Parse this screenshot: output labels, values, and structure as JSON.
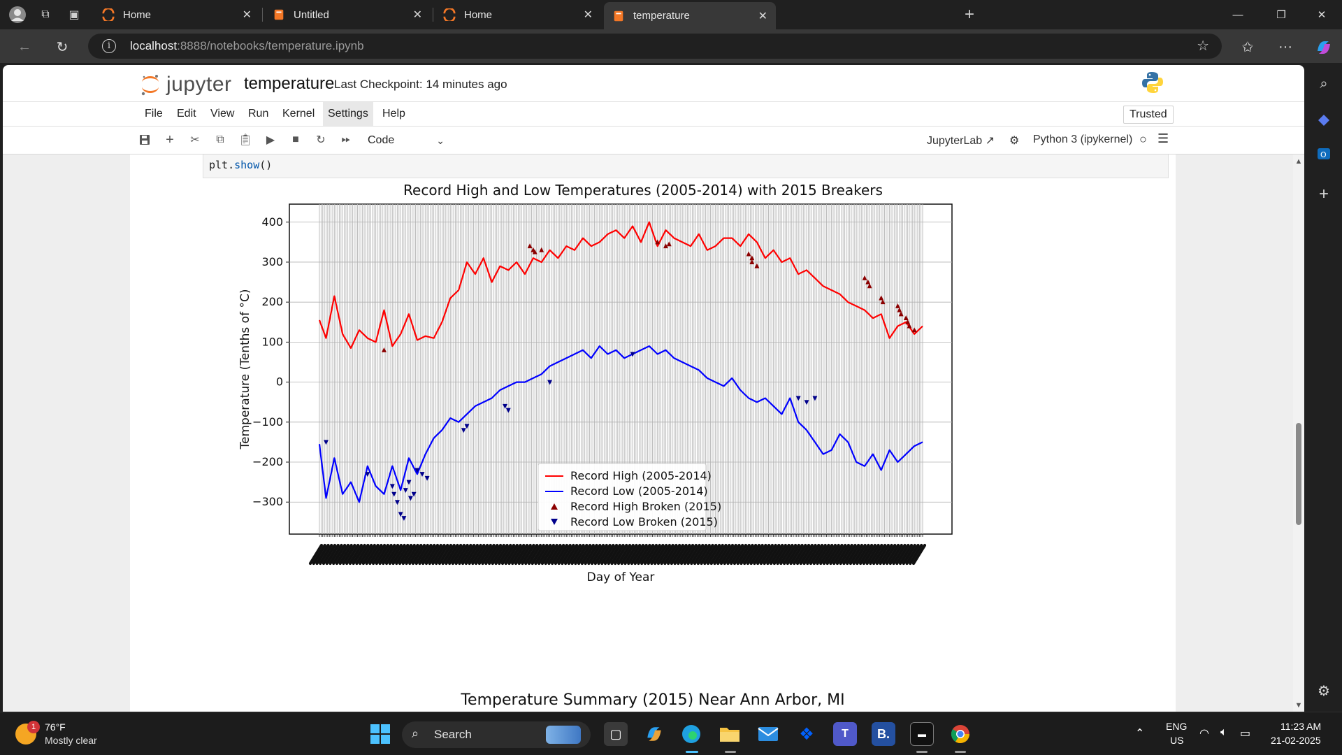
{
  "browser": {
    "tabs": [
      {
        "title": "Home",
        "active": false
      },
      {
        "title": "Untitled",
        "active": false
      },
      {
        "title": "Home",
        "active": false
      },
      {
        "title": "temperature",
        "active": true
      }
    ],
    "url_host": "localhost",
    "url_rest": ":8888/notebooks/temperature.ipynb"
  },
  "jupyter": {
    "logo_text": "jupyter",
    "notebook_name": "temperature",
    "checkpoint": "Last Checkpoint: 14 minutes ago",
    "menu": [
      "File",
      "Edit",
      "View",
      "Run",
      "Kernel",
      "Settings",
      "Help"
    ],
    "trusted": "Trusted",
    "cell_type": "Code",
    "jupyterlab_link": "JupyterLab",
    "kernel": "Python 3 (ipykernel)"
  },
  "cell": {
    "code_obj": "plt.",
    "code_fn": "show",
    "code_tail": "()"
  },
  "chart_data": {
    "type": "line",
    "title": "Record High and Low Temperatures (2005-2014) with 2015 Breakers",
    "xlabel": "Day of Year",
    "ylabel": "Temperature (Tenths of °C)",
    "ylim": [
      -380,
      445
    ],
    "yticks": [
      -300,
      -200,
      -100,
      0,
      100,
      200,
      300,
      400
    ],
    "ytick_labels": [
      "−300",
      "−200",
      "−100",
      "0",
      "100",
      "200",
      "300",
      "400"
    ],
    "grid": true,
    "legend_position": "lower center",
    "x_domain": [
      1,
      365
    ],
    "x_tick_labels_note": "365 date tick labels, overlapping and illegible",
    "high_color": "#ff0000",
    "low_color": "#0000ff",
    "high_marker_color": "#8b0000",
    "low_marker_color": "#00008b",
    "series": [
      {
        "name": "Record High (2005-2014)",
        "x": [
          1,
          5,
          10,
          15,
          20,
          25,
          30,
          35,
          40,
          45,
          50,
          55,
          60,
          65,
          70,
          75,
          80,
          85,
          90,
          95,
          100,
          105,
          110,
          115,
          120,
          125,
          130,
          135,
          140,
          145,
          150,
          155,
          160,
          165,
          170,
          175,
          180,
          185,
          190,
          195,
          200,
          205,
          210,
          215,
          220,
          225,
          230,
          235,
          240,
          245,
          250,
          255,
          260,
          265,
          270,
          275,
          280,
          285,
          290,
          295,
          300,
          305,
          310,
          315,
          320,
          325,
          330,
          335,
          340,
          345,
          350,
          355,
          360,
          365
        ],
        "values": [
          155,
          110,
          215,
          120,
          85,
          130,
          110,
          100,
          180,
          90,
          120,
          170,
          105,
          115,
          110,
          150,
          210,
          230,
          300,
          270,
          310,
          250,
          290,
          280,
          300,
          270,
          310,
          300,
          330,
          310,
          340,
          330,
          360,
          340,
          350,
          370,
          380,
          360,
          390,
          350,
          400,
          340,
          380,
          360,
          350,
          340,
          370,
          330,
          340,
          360,
          360,
          340,
          370,
          350,
          310,
          330,
          300,
          310,
          270,
          280,
          260,
          240,
          230,
          220,
          200,
          190,
          180,
          160,
          170,
          110,
          140,
          150,
          120,
          140
        ]
      },
      {
        "name": "Record Low (2005-2014)",
        "x": [
          1,
          5,
          10,
          15,
          20,
          25,
          30,
          35,
          40,
          45,
          50,
          55,
          60,
          65,
          70,
          75,
          80,
          85,
          90,
          95,
          100,
          105,
          110,
          115,
          120,
          125,
          130,
          135,
          140,
          145,
          150,
          155,
          160,
          165,
          170,
          175,
          180,
          185,
          190,
          195,
          200,
          205,
          210,
          215,
          220,
          225,
          230,
          235,
          240,
          245,
          250,
          255,
          260,
          265,
          270,
          275,
          280,
          285,
          290,
          295,
          300,
          305,
          310,
          315,
          320,
          325,
          330,
          335,
          340,
          345,
          350,
          355,
          360,
          365
        ],
        "values": [
          -155,
          -290,
          -190,
          -280,
          -250,
          -300,
          -210,
          -260,
          -280,
          -210,
          -270,
          -190,
          -230,
          -180,
          -140,
          -120,
          -90,
          -100,
          -80,
          -60,
          -50,
          -40,
          -20,
          -10,
          0,
          0,
          10,
          20,
          40,
          50,
          60,
          70,
          80,
          60,
          90,
          70,
          80,
          60,
          70,
          80,
          90,
          70,
          80,
          60,
          50,
          40,
          30,
          10,
          0,
          -10,
          10,
          -20,
          -40,
          -50,
          -40,
          -60,
          -80,
          -40,
          -100,
          -120,
          -150,
          -180,
          -170,
          -130,
          -150,
          -200,
          -210,
          -180,
          -220,
          -170,
          -200,
          -180,
          -160,
          -150
        ]
      },
      {
        "name": "Record High Broken (2015)",
        "marker": "triangle-up",
        "x": [
          40,
          128,
          130,
          131,
          135,
          205,
          210,
          212,
          260,
          262,
          262,
          265,
          330,
          332,
          333,
          340,
          341,
          350,
          351,
          352,
          355,
          356,
          357,
          360
        ],
        "values": [
          80,
          340,
          330,
          325,
          330,
          350,
          340,
          345,
          320,
          310,
          300,
          290,
          260,
          250,
          240,
          210,
          200,
          190,
          180,
          170,
          160,
          150,
          140,
          130
        ]
      },
      {
        "name": "Record Low Broken (2015)",
        "marker": "triangle-down",
        "x": [
          5,
          30,
          45,
          46,
          48,
          50,
          52,
          53,
          55,
          56,
          58,
          60,
          63,
          66,
          88,
          90,
          113,
          115,
          140,
          190,
          290,
          295,
          300
        ],
        "values": [
          -150,
          -230,
          -260,
          -280,
          -300,
          -330,
          -340,
          -270,
          -250,
          -290,
          -280,
          -220,
          -230,
          -240,
          -120,
          -110,
          -60,
          -70,
          0,
          70,
          -40,
          -50,
          -40
        ]
      }
    ]
  },
  "next_output_title": "Temperature Summary (2015) Near Ann Arbor, MI",
  "taskbar": {
    "weather_temp": "76°F",
    "weather_desc": "Mostly clear",
    "weather_badge": "1",
    "search": "Search",
    "lang": "ENG",
    "region": "US",
    "time": "11:23 AM",
    "date": "21-02-2025"
  }
}
